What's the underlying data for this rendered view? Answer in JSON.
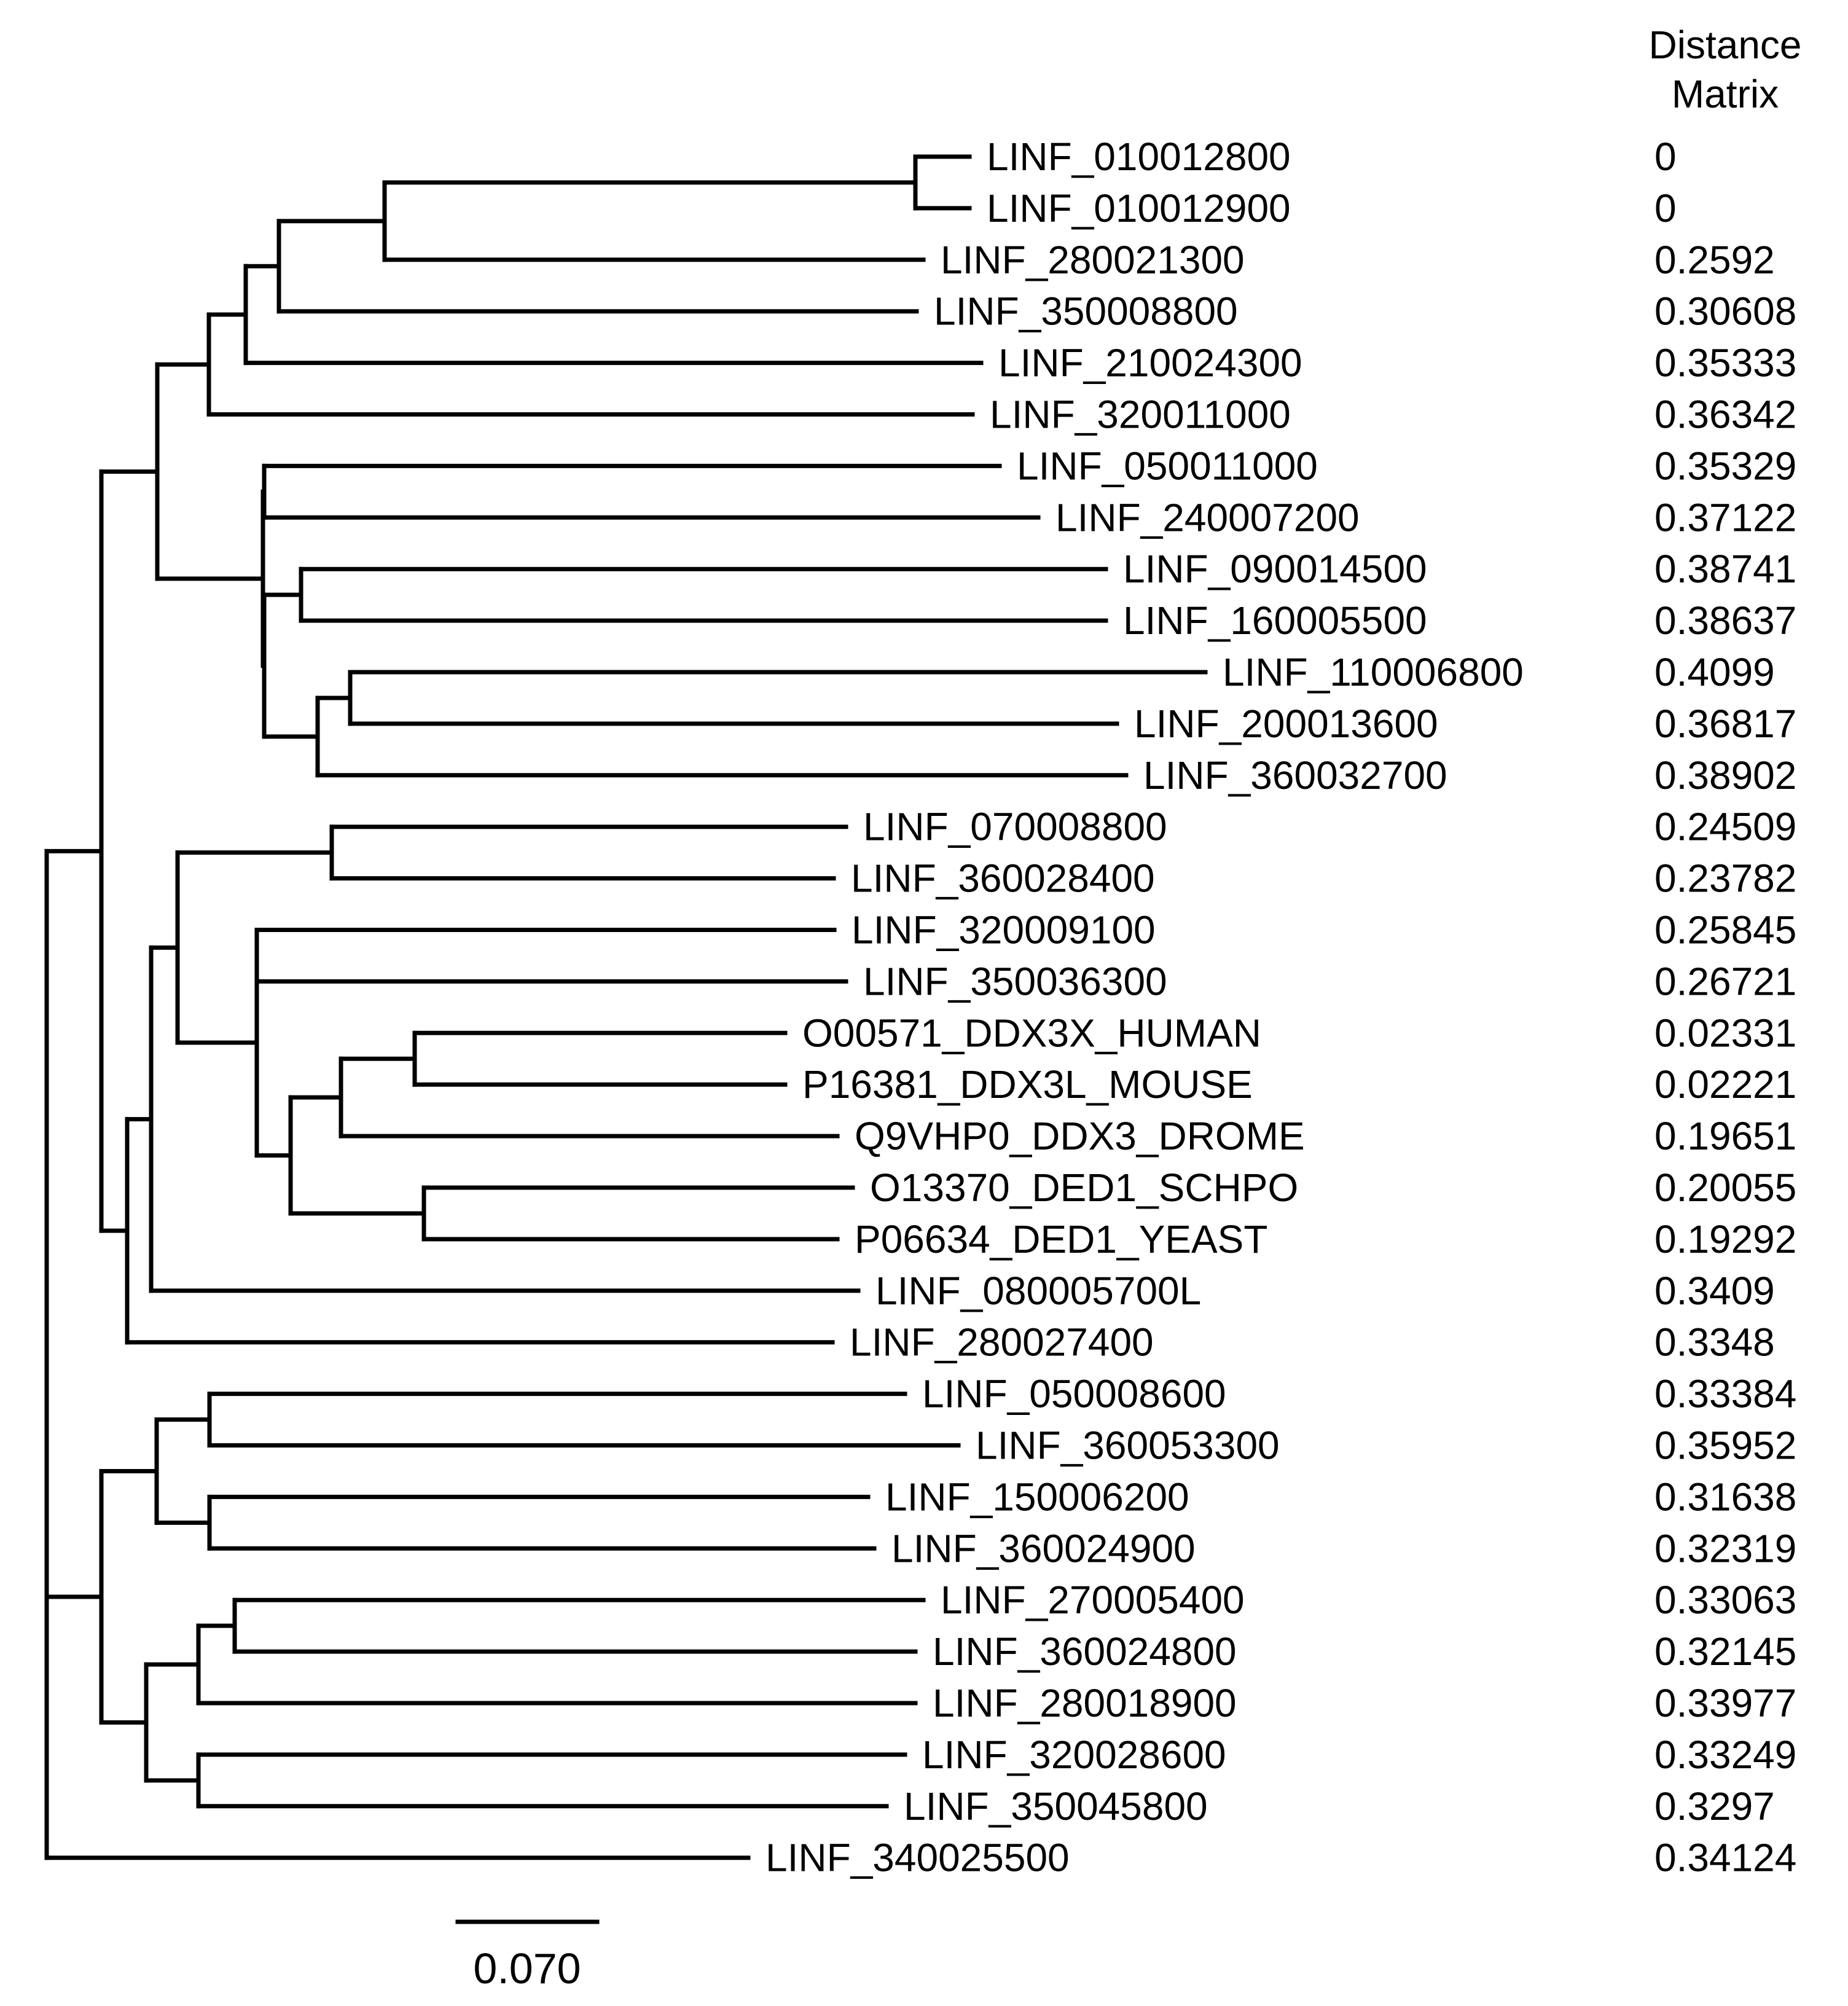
{
  "figure": {
    "distance_header_line1": "Distance",
    "distance_header_line2": "Matrix",
    "scale_bar_label": "0.070"
  },
  "tree_nodes": [
    {
      "id": "n1",
      "parent": "root"
    },
    {
      "id": "n2",
      "parent": "n1"
    },
    {
      "id": "n3",
      "parent": "n2"
    },
    {
      "id": "n4",
      "parent": "n3"
    },
    {
      "id": "n5",
      "parent": "n4"
    },
    {
      "id": "n6",
      "parent": "n5"
    },
    {
      "id": "n7",
      "parent": "n6"
    },
    {
      "id": "n8",
      "parent": "n2"
    },
    {
      "id": "n9",
      "parent": "n8"
    },
    {
      "id": "n10",
      "parent": "n8"
    },
    {
      "id": "n11",
      "parent": "n10"
    },
    {
      "id": "n12",
      "parent": "n10"
    },
    {
      "id": "n13",
      "parent": "n12"
    },
    {
      "id": "n14",
      "parent": "n1"
    },
    {
      "id": "n15",
      "parent": "n14"
    },
    {
      "id": "n16",
      "parent": "n15"
    },
    {
      "id": "n17",
      "parent": "n16"
    },
    {
      "id": "n18",
      "parent": "n16"
    },
    {
      "id": "n19",
      "parent": "n18"
    },
    {
      "id": "n20",
      "parent": "n19"
    },
    {
      "id": "n21",
      "parent": "n20"
    },
    {
      "id": "n22",
      "parent": "n19"
    },
    {
      "id": "n23",
      "parent": "root"
    },
    {
      "id": "n24",
      "parent": "n23"
    },
    {
      "id": "n25",
      "parent": "n24"
    },
    {
      "id": "n26",
      "parent": "n24"
    },
    {
      "id": "n27",
      "parent": "n23"
    },
    {
      "id": "n28",
      "parent": "n27"
    },
    {
      "id": "n29",
      "parent": "n28"
    },
    {
      "id": "n30",
      "parent": "n27"
    }
  ],
  "leaves": [
    {
      "name": "LINF_010012800",
      "parent": "n7",
      "distance": "0"
    },
    {
      "name": "LINF_010012900",
      "parent": "n7",
      "distance": "0"
    },
    {
      "name": "LINF_280021300",
      "parent": "n6",
      "distance": "0.2592"
    },
    {
      "name": "LINF_350008800",
      "parent": "n5",
      "distance": "0.30608"
    },
    {
      "name": "LINF_210024300",
      "parent": "n4",
      "distance": "0.35333"
    },
    {
      "name": "LINF_320011000",
      "parent": "n3",
      "distance": "0.36342"
    },
    {
      "name": "LINF_050011000",
      "parent": "n9",
      "distance": "0.35329"
    },
    {
      "name": "LINF_240007200",
      "parent": "n9",
      "distance": "0.37122"
    },
    {
      "name": "LINF_090014500",
      "parent": "n11",
      "distance": "0.38741"
    },
    {
      "name": "LINF_160005500",
      "parent": "n11",
      "distance": "0.38637"
    },
    {
      "name": "LINF_110006800",
      "parent": "n13",
      "distance": "0.4099"
    },
    {
      "name": "LINF_200013600",
      "parent": "n13",
      "distance": "0.36817"
    },
    {
      "name": "LINF_360032700",
      "parent": "n12",
      "distance": "0.38902"
    },
    {
      "name": "LINF_070008800",
      "parent": "n17",
      "distance": "0.24509"
    },
    {
      "name": "LINF_360028400",
      "parent": "n17",
      "distance": "0.23782"
    },
    {
      "name": "LINF_320009100",
      "parent": "n18",
      "distance": "0.25845"
    },
    {
      "name": "LINF_350036300",
      "parent": "n18",
      "distance": "0.26721"
    },
    {
      "name": "O00571_DDX3X_HUMAN",
      "parent": "n21",
      "distance": "0.02331"
    },
    {
      "name": "P16381_DDX3L_MOUSE",
      "parent": "n21",
      "distance": "0.02221"
    },
    {
      "name": "Q9VHP0_DDX3_DROME",
      "parent": "n20",
      "distance": "0.19651"
    },
    {
      "name": "O13370_DED1_SCHPO",
      "parent": "n22",
      "distance": "0.20055"
    },
    {
      "name": "P06634_DED1_YEAST",
      "parent": "n22",
      "distance": "0.19292"
    },
    {
      "name": "LINF_080005700L",
      "parent": "n15",
      "distance": "0.3409"
    },
    {
      "name": "LINF_280027400",
      "parent": "n14",
      "distance": "0.3348"
    },
    {
      "name": "LINF_050008600",
      "parent": "n25",
      "distance": "0.33384"
    },
    {
      "name": "LINF_360053300",
      "parent": "n25",
      "distance": "0.35952"
    },
    {
      "name": "LINF_150006200",
      "parent": "n26",
      "distance": "0.31638"
    },
    {
      "name": "LINF_360024900",
      "parent": "n26",
      "distance": "0.32319"
    },
    {
      "name": "LINF_270005400",
      "parent": "n29",
      "distance": "0.33063"
    },
    {
      "name": "LINF_360024800",
      "parent": "n29",
      "distance": "0.32145"
    },
    {
      "name": "LINF_280018900",
      "parent": "n28",
      "distance": "0.33977"
    },
    {
      "name": "LINF_320028600",
      "parent": "n30",
      "distance": "0.33249"
    },
    {
      "name": "LINF_350045800",
      "parent": "n30",
      "distance": "0.3297"
    },
    {
      "name": "LINF_340025500",
      "parent": "root",
      "distance": "0.34124"
    }
  ]
}
